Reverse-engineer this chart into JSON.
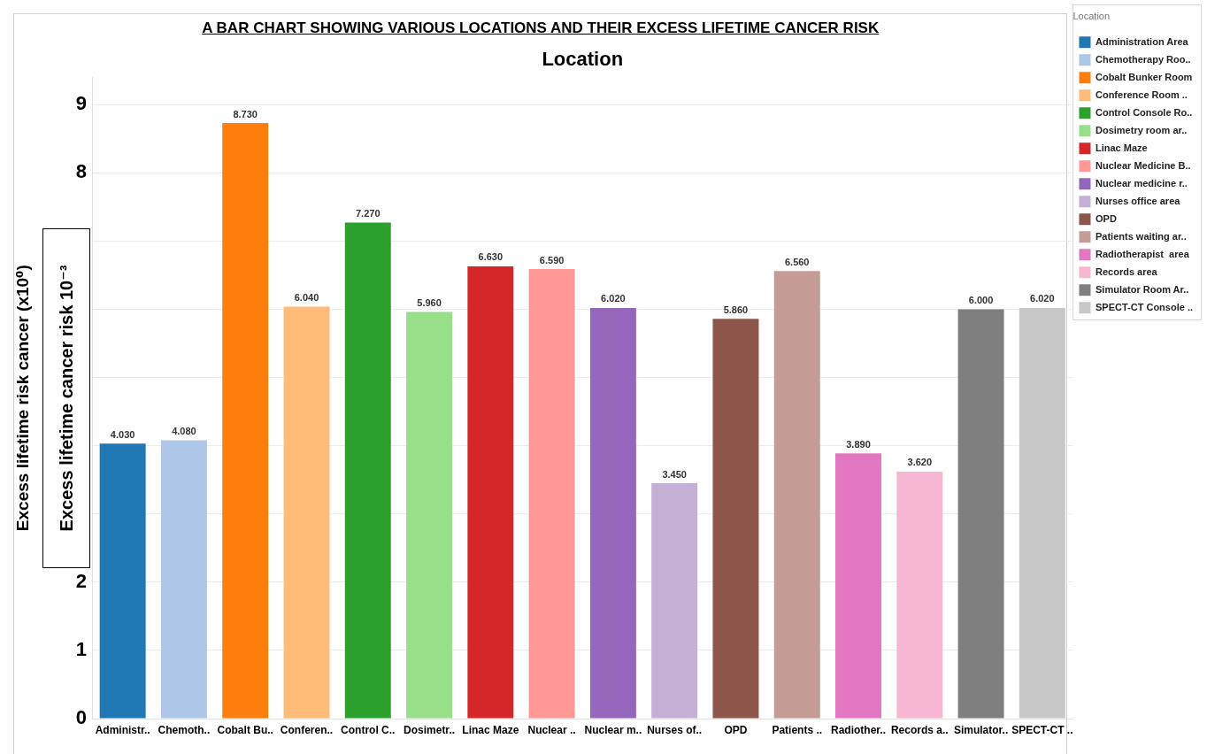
{
  "chart_data": {
    "type": "bar",
    "title": "A BAR CHART SHOWING VARIOUS LOCATIONS AND THEIR EXCESS LIFETIME CANCER RISK",
    "xlabel": "Location",
    "ylabel": "Excess lifetime risk cancer (x10⁰)",
    "legend_title": "Location",
    "annotations": [
      "Excess lifetime cancer risk 10⁻³"
    ],
    "categories": [
      "Administr..",
      "Chemoth..",
      "Cobalt Bu..",
      "Conferen..",
      "Control C..",
      "Dosimetr..",
      "Linac Maze",
      "Nuclear ..",
      "Nuclear m..",
      "Nurses of..",
      "OPD",
      "Patients ..",
      "Radiother..",
      "Records a..",
      "Simulator..",
      "SPECT-CT .."
    ],
    "series": [
      {
        "name": "Administration Area",
        "color": "#1f77b4",
        "values": [
          4.03,
          null,
          null,
          null,
          null,
          null,
          null,
          null,
          null,
          null,
          null,
          null,
          null,
          null,
          null,
          null
        ],
        "value_labels": [
          "4.030",
          null,
          null,
          null,
          null,
          null,
          null,
          null,
          null,
          null,
          null,
          null,
          null,
          null,
          null,
          null
        ]
      },
      {
        "name": "Chemotherapy Roo..",
        "color": "#aec7e8",
        "values": [
          null,
          4.08,
          null,
          null,
          null,
          null,
          null,
          null,
          null,
          null,
          null,
          null,
          null,
          null,
          null,
          null
        ],
        "value_labels": [
          null,
          "4.080",
          null,
          null,
          null,
          null,
          null,
          null,
          null,
          null,
          null,
          null,
          null,
          null,
          null,
          null
        ]
      },
      {
        "name": "Cobalt Bunker Room",
        "color": "#ff7f0e",
        "values": [
          null,
          null,
          8.73,
          null,
          null,
          null,
          null,
          null,
          null,
          null,
          null,
          null,
          null,
          null,
          null,
          null
        ],
        "value_labels": [
          null,
          null,
          "8.730",
          null,
          null,
          null,
          null,
          null,
          null,
          null,
          null,
          null,
          null,
          null,
          null,
          null
        ]
      },
      {
        "name": "Conference Room ..",
        "color": "#ffbb78",
        "values": [
          null,
          null,
          null,
          6.04,
          null,
          null,
          null,
          null,
          null,
          null,
          null,
          null,
          null,
          null,
          null,
          null
        ],
        "value_labels": [
          null,
          null,
          null,
          "6.040",
          null,
          null,
          null,
          null,
          null,
          null,
          null,
          null,
          null,
          null,
          null,
          null
        ]
      },
      {
        "name": "Control Console Ro..",
        "color": "#2ca02c",
        "values": [
          null,
          null,
          null,
          null,
          7.27,
          null,
          null,
          null,
          null,
          null,
          null,
          null,
          null,
          null,
          null,
          null
        ],
        "value_labels": [
          null,
          null,
          null,
          null,
          "7.270",
          null,
          null,
          null,
          null,
          null,
          null,
          null,
          null,
          null,
          null,
          null
        ]
      },
      {
        "name": "Dosimetry room ar..",
        "color": "#98df8a",
        "values": [
          null,
          null,
          null,
          null,
          null,
          5.96,
          null,
          null,
          null,
          null,
          null,
          null,
          null,
          null,
          null,
          null
        ],
        "value_labels": [
          null,
          null,
          null,
          null,
          null,
          "5.960",
          null,
          null,
          null,
          null,
          null,
          null,
          null,
          null,
          null,
          null
        ]
      },
      {
        "name": "Linac Maze",
        "color": "#d62728",
        "values": [
          null,
          null,
          null,
          null,
          null,
          null,
          6.63,
          null,
          null,
          null,
          null,
          null,
          null,
          null,
          null,
          null
        ],
        "value_labels": [
          null,
          null,
          null,
          null,
          null,
          null,
          "6.630",
          null,
          null,
          null,
          null,
          null,
          null,
          null,
          null,
          null
        ]
      },
      {
        "name": "Nuclear Medicine B..",
        "color": "#ff9896",
        "values": [
          null,
          null,
          null,
          null,
          null,
          null,
          null,
          6.59,
          null,
          null,
          null,
          null,
          null,
          null,
          null,
          null
        ],
        "value_labels": [
          null,
          null,
          null,
          null,
          null,
          null,
          null,
          "6.590",
          null,
          null,
          null,
          null,
          null,
          null,
          null,
          null
        ]
      },
      {
        "name": "Nuclear medicine r..",
        "color": "#9467bd",
        "values": [
          null,
          null,
          null,
          null,
          null,
          null,
          null,
          null,
          6.02,
          null,
          null,
          null,
          null,
          null,
          null,
          null
        ],
        "value_labels": [
          null,
          null,
          null,
          null,
          null,
          null,
          null,
          null,
          "6.020",
          null,
          null,
          null,
          null,
          null,
          null,
          null
        ]
      },
      {
        "name": "Nurses office area",
        "color": "#c5b0d5",
        "values": [
          null,
          null,
          null,
          null,
          null,
          null,
          null,
          null,
          null,
          3.45,
          null,
          null,
          null,
          null,
          null,
          null
        ],
        "value_labels": [
          null,
          null,
          null,
          null,
          null,
          null,
          null,
          null,
          null,
          "3.450",
          null,
          null,
          null,
          null,
          null,
          null
        ]
      },
      {
        "name": "OPD",
        "color": "#8c564b",
        "values": [
          null,
          null,
          null,
          null,
          null,
          null,
          null,
          null,
          null,
          null,
          5.86,
          null,
          null,
          null,
          null,
          null
        ],
        "value_labels": [
          null,
          null,
          null,
          null,
          null,
          null,
          null,
          null,
          null,
          null,
          "5.860",
          null,
          null,
          null,
          null,
          null
        ]
      },
      {
        "name": "Patients waiting ar..",
        "color": "#c49c94",
        "values": [
          null,
          null,
          null,
          null,
          null,
          null,
          null,
          null,
          null,
          null,
          null,
          6.56,
          null,
          null,
          null,
          null
        ],
        "value_labels": [
          null,
          null,
          null,
          null,
          null,
          null,
          null,
          null,
          null,
          null,
          null,
          "6.560",
          null,
          null,
          null,
          null
        ]
      },
      {
        "name": "Radiotherapist  area",
        "color": "#e377c2",
        "values": [
          null,
          null,
          null,
          null,
          null,
          null,
          null,
          null,
          null,
          null,
          null,
          null,
          3.89,
          null,
          null,
          null
        ],
        "value_labels": [
          null,
          null,
          null,
          null,
          null,
          null,
          null,
          null,
          null,
          null,
          null,
          null,
          "3.890",
          null,
          null,
          null
        ]
      },
      {
        "name": "Records area",
        "color": "#f7b6d2",
        "values": [
          null,
          null,
          null,
          null,
          null,
          null,
          null,
          null,
          null,
          null,
          null,
          null,
          null,
          3.62,
          null,
          null
        ],
        "value_labels": [
          null,
          null,
          null,
          null,
          null,
          null,
          null,
          null,
          null,
          null,
          null,
          null,
          null,
          "3.620",
          null,
          null
        ]
      },
      {
        "name": "Simulator Room Ar..",
        "color": "#7f7f7f",
        "values": [
          null,
          null,
          null,
          null,
          null,
          null,
          null,
          null,
          null,
          null,
          null,
          null,
          null,
          null,
          6.0,
          null
        ],
        "value_labels": [
          null,
          null,
          null,
          null,
          null,
          null,
          null,
          null,
          null,
          null,
          null,
          null,
          null,
          null,
          "6.000",
          null
        ]
      },
      {
        "name": "SPECT-CT Console ..",
        "color": "#c7c7c7",
        "values": [
          null,
          null,
          null,
          null,
          null,
          null,
          null,
          null,
          null,
          null,
          null,
          null,
          null,
          null,
          null,
          6.02
        ],
        "value_labels": [
          null,
          null,
          null,
          null,
          null,
          null,
          null,
          null,
          null,
          null,
          null,
          null,
          null,
          null,
          null,
          "6.020"
        ]
      }
    ],
    "ylim": [
      0,
      9.4
    ],
    "yticks": [
      0,
      1,
      2,
      {
        "value": 3,
        "label": null
      },
      {
        "value": 4,
        "label": null
      },
      {
        "value": 5,
        "label": null
      },
      {
        "value": 6,
        "label": null
      },
      {
        "value": 7,
        "label": null
      },
      8,
      9
    ],
    "grid": "y",
    "legend": "right"
  }
}
